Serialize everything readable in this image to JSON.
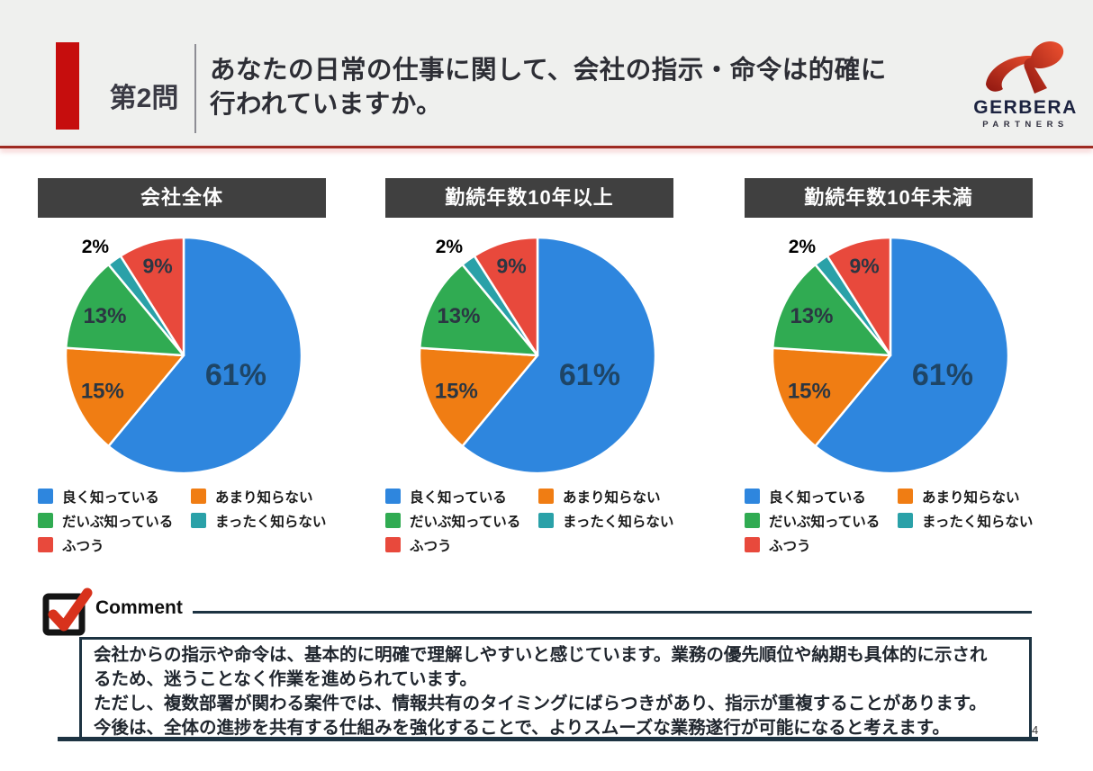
{
  "page": {
    "background": "#ffffff",
    "page_number": "4"
  },
  "header": {
    "band_bg": "#eff0ee",
    "accent_bar_color": "#c60d0d",
    "rule_color": "#9e2b22",
    "question_no": "第2問",
    "question_line1": "あなたの日常の仕事に関して、会社の指示・命令は的確に",
    "question_line2": "行われていますか。"
  },
  "logo": {
    "brand": "GERBERA",
    "sub": "PARTNERS",
    "mark_gradient_start": "#8f1710",
    "mark_gradient_end": "#ef5230",
    "text_color": "#1c2340"
  },
  "palette": {
    "blue": "#2e86de",
    "orange": "#f07d13",
    "green": "#30ab52",
    "teal": "#2aa1a8",
    "red": "#e8493c",
    "chip_bg": "#404040",
    "border_navy": "#1d3342",
    "check_red": "#d8321c"
  },
  "chart_data": [
    {
      "type": "pie",
      "title": "会社全体",
      "categories": [
        "良く知っている",
        "あまり知らない",
        "だいぶ知っている",
        "まったく知らない",
        "ふつう"
      ],
      "values": [
        61,
        15,
        13,
        2,
        9
      ],
      "labels": [
        "61%",
        "15%",
        "13%",
        "2%",
        "9%"
      ],
      "colors": [
        "#2e86de",
        "#f07d13",
        "#30ab52",
        "#2aa1a8",
        "#e8493c"
      ],
      "start_angle_deg": 0,
      "direction": "clockwise",
      "legend_position": "bottom"
    },
    {
      "type": "pie",
      "title": "勤続年数10年以上",
      "categories": [
        "良く知っている",
        "あまり知らない",
        "だいぶ知っている",
        "まったく知らない",
        "ふつう"
      ],
      "values": [
        61,
        15,
        13,
        2,
        9
      ],
      "labels": [
        "61%",
        "15%",
        "13%",
        "2%",
        "9%"
      ],
      "colors": [
        "#2e86de",
        "#f07d13",
        "#30ab52",
        "#2aa1a8",
        "#e8493c"
      ],
      "start_angle_deg": 0,
      "direction": "clockwise",
      "legend_position": "bottom"
    },
    {
      "type": "pie",
      "title": "勤続年数10年未満",
      "categories": [
        "良く知っている",
        "あまり知らない",
        "だいぶ知っている",
        "まったく知らない",
        "ふつう"
      ],
      "values": [
        61,
        15,
        13,
        2,
        9
      ],
      "labels": [
        "61%",
        "15%",
        "13%",
        "2%",
        "9%"
      ],
      "colors": [
        "#2e86de",
        "#f07d13",
        "#30ab52",
        "#2aa1a8",
        "#e8493c"
      ],
      "start_angle_deg": 0,
      "direction": "clockwise",
      "legend_position": "bottom"
    }
  ],
  "legend": {
    "items": [
      {
        "label": "良く知っている",
        "color": "#2e86de",
        "col": 1
      },
      {
        "label": "だいぶ知っている",
        "color": "#30ab52",
        "col": 1
      },
      {
        "label": "ふつう",
        "color": "#e8493c",
        "col": 1
      },
      {
        "label": "あまり知らない",
        "color": "#f07d13",
        "col": 2
      },
      {
        "label": "まったく知らない",
        "color": "#2aa1a8",
        "col": 2
      }
    ]
  },
  "comment": {
    "label": "Comment",
    "lines": [
      "会社からの指示や命令は、基本的に明確で理解しやすいと感じています。業務の優先順位や納期も具体的に示され",
      "るため、迷うことなく作業を進められています。",
      "ただし、複数部署が関わる案件では、情報共有のタイミングにばらつきがあり、指示が重複することがあります。",
      "今後は、全体の進捗を共有する仕組みを強化することで、よりスムーズな業務遂行が可能になると考えます。"
    ]
  }
}
